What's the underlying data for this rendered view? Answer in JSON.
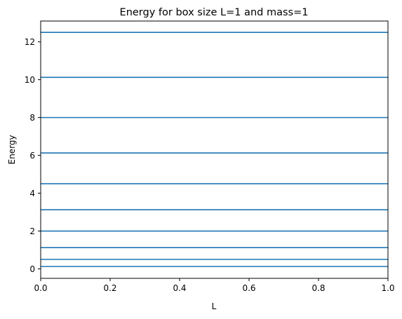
{
  "chart_data": {
    "type": "line",
    "title": "Energy for box size L=1 and mass=1",
    "xlabel": "L",
    "ylabel": "Energy",
    "xlim": [
      0,
      1
    ],
    "ylim": [
      -0.5,
      13.1
    ],
    "xticks": [
      0,
      0.2,
      0.4,
      0.6,
      0.8,
      1.0
    ],
    "xtick_labels": [
      "0.0",
      "0.2",
      "0.4",
      "0.6",
      "0.8",
      "1.0"
    ],
    "yticks": [
      0,
      2,
      4,
      6,
      8,
      10,
      12
    ],
    "ytick_labels": [
      "0",
      "2",
      "4",
      "6",
      "8",
      "10",
      "12"
    ],
    "grid": false,
    "series_color": "#1f77b4",
    "series": [
      {
        "x": [
          0,
          1
        ],
        "values": [
          0.125,
          0.125
        ]
      },
      {
        "x": [
          0,
          1
        ],
        "values": [
          0.5,
          0.5
        ]
      },
      {
        "x": [
          0,
          1
        ],
        "values": [
          1.125,
          1.125
        ]
      },
      {
        "x": [
          0,
          1
        ],
        "values": [
          2.0,
          2.0
        ]
      },
      {
        "x": [
          0,
          1
        ],
        "values": [
          3.125,
          3.125
        ]
      },
      {
        "x": [
          0,
          1
        ],
        "values": [
          4.5,
          4.5
        ]
      },
      {
        "x": [
          0,
          1
        ],
        "values": [
          6.125,
          6.125
        ]
      },
      {
        "x": [
          0,
          1
        ],
        "values": [
          8.0,
          8.0
        ]
      },
      {
        "x": [
          0,
          1
        ],
        "values": [
          10.125,
          10.125
        ]
      },
      {
        "x": [
          0,
          1
        ],
        "values": [
          12.5,
          12.5
        ]
      }
    ]
  }
}
